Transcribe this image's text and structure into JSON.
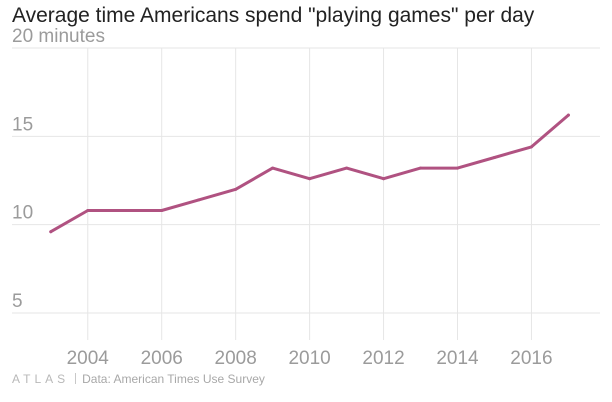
{
  "title": "Average time Americans spend \"playing games\" per day",
  "footer": {
    "logo": "ATLAS",
    "source_label": "Data:",
    "source": "American Times Use Survey"
  },
  "colors": {
    "line": "#b05281",
    "grid": "#e6e6e6",
    "text": "#9b9b9b"
  },
  "chart_data": {
    "type": "line",
    "title": "Average time Americans spend \"playing games\" per day",
    "xlabel": "",
    "ylabel": "",
    "y_unit_label": "minutes",
    "xlim": [
      2002.6,
      2017.8
    ],
    "ylim": [
      3.5,
      20
    ],
    "grid": true,
    "legend": "none",
    "x_ticks": [
      2004,
      2006,
      2008,
      2010,
      2012,
      2014,
      2016
    ],
    "y_ticks": [
      5,
      10,
      15,
      20
    ],
    "x_tick_labels": [
      "2004",
      "2006",
      "2008",
      "2010",
      "2012",
      "2014",
      "2016"
    ],
    "y_tick_labels": [
      "5",
      "10",
      "15",
      "20 minutes"
    ],
    "series": [
      {
        "x": [
          2003,
          2004,
          2005,
          2006,
          2007,
          2008,
          2009,
          2010,
          2011,
          2012,
          2013,
          2014,
          2015,
          2016,
          2017
        ],
        "values": [
          9.6,
          10.8,
          10.8,
          10.8,
          11.4,
          12.0,
          13.2,
          12.6,
          13.2,
          12.6,
          13.2,
          13.2,
          13.8,
          14.4,
          16.2
        ]
      }
    ]
  }
}
